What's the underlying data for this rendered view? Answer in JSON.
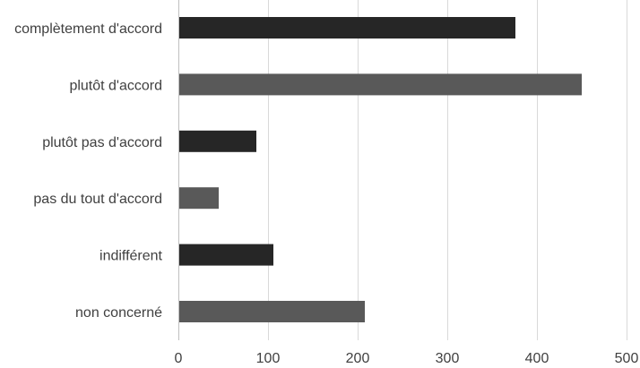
{
  "chart_data": {
    "type": "bar",
    "orientation": "horizontal",
    "categories": [
      "complètement d'accord",
      "plutôt d'accord",
      "plutôt pas d'accord",
      "pas du tout d'accord",
      "indifférent",
      "non concerné"
    ],
    "values": [
      376,
      450,
      87,
      45,
      106,
      208
    ],
    "bar_colors": [
      "#262626",
      "#595959",
      "#262626",
      "#595959",
      "#262626",
      "#595959"
    ],
    "xlim": [
      0,
      500
    ],
    "x_ticks": [
      0,
      100,
      200,
      300,
      400,
      500
    ],
    "grid": true,
    "title": "",
    "xlabel": "",
    "ylabel": ""
  }
}
